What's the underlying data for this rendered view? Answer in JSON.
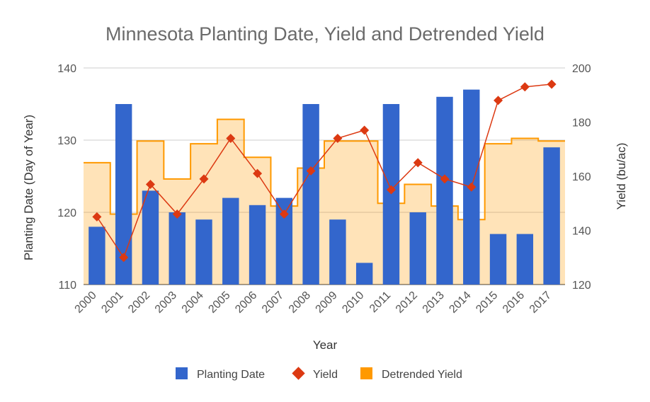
{
  "chart_data": {
    "type": "combo",
    "title": "Minnesota Planting Date, Yield and Detrended Yield",
    "xlabel": "Year",
    "ylabel_left": "Planting Date (Day of Year)",
    "ylabel_right": "Yield (bu/ac)",
    "categories": [
      "2000",
      "2001",
      "2002",
      "2003",
      "2004",
      "2005",
      "2006",
      "2007",
      "2008",
      "2009",
      "2010",
      "2011",
      "2012",
      "2013",
      "2014",
      "2015",
      "2016",
      "2017"
    ],
    "ylim_left": [
      110,
      140
    ],
    "yticks_left": [
      "110",
      "120",
      "130",
      "140"
    ],
    "ylim_right": [
      120,
      200
    ],
    "yticks_right": [
      "120",
      "140",
      "160",
      "180",
      "200"
    ],
    "grid": true,
    "legend_position": "bottom",
    "series": [
      {
        "name": "Planting Date",
        "kind": "bar",
        "axis": "left",
        "color": "#3366cc",
        "values": [
          118,
          135,
          123,
          120,
          119,
          122,
          121,
          122,
          135,
          119,
          113,
          135,
          120,
          136,
          137,
          117,
          117,
          129
        ]
      },
      {
        "name": "Yield",
        "kind": "line",
        "axis": "right",
        "color": "#dc3912",
        "values": [
          145,
          130,
          157,
          146,
          159,
          174,
          161,
          146,
          162,
          174,
          177,
          155,
          165,
          159,
          156,
          188,
          193,
          194
        ]
      },
      {
        "name": "Detrended Yield",
        "kind": "stepped-area",
        "axis": "right",
        "color": "#ff9900",
        "values": [
          165,
          146,
          173,
          159,
          172,
          181,
          167,
          149,
          163,
          173,
          173,
          150,
          157,
          149,
          144,
          172,
          174,
          173
        ]
      }
    ]
  }
}
